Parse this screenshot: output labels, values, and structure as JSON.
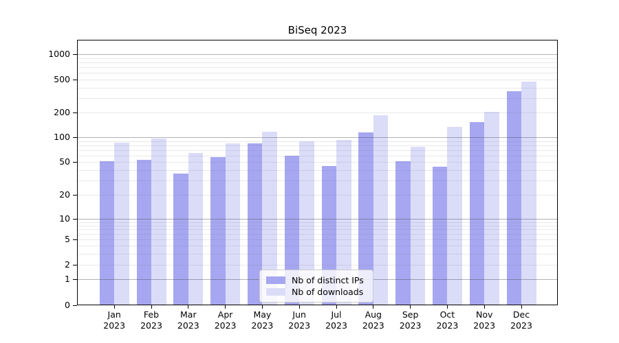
{
  "window": {
    "background": "#ffffff"
  },
  "chart_data": {
    "type": "bar",
    "title": "BiSeq 2023",
    "categories": [
      "Jan 2023",
      "Feb 2023",
      "Mar 2023",
      "Apr 2023",
      "May 2023",
      "Jun 2023",
      "Jul 2023",
      "Aug 2023",
      "Sep 2023",
      "Oct 2023",
      "Nov 2023",
      "Dec 2023"
    ],
    "series": [
      {
        "name": "Nb of distinct IPs",
        "color": "#a6a7f0",
        "values": [
          51,
          53,
          36,
          57,
          84,
          60,
          45,
          115,
          51,
          44,
          154,
          363
        ]
      },
      {
        "name": "Nb of downloads",
        "color": "#dbdcf8",
        "values": [
          85,
          97,
          64,
          84,
          116,
          90,
          92,
          184,
          76,
          133,
          205,
          470
        ]
      }
    ],
    "xlabel": "",
    "ylabel": "",
    "y_scale": "log (with 0 baseline)",
    "y_ticks": [
      0,
      1,
      2,
      5,
      10,
      20,
      50,
      100,
      200,
      500,
      1000
    ],
    "ylim": [
      0,
      1500
    ],
    "grid": "horizontal: dark lines at powers of 10, faint minor lines at 2-9 within each decade",
    "legend_position": "inside bottom-center"
  },
  "colors": {
    "bar_distinct_ips": "#a6a7f0",
    "bar_downloads": "#dbdcf8",
    "major_gridline": "#a8a8ad",
    "minor_gridline": "#e4e4e8",
    "axis_spine": "#000000",
    "legend_border": "#cccccc",
    "legend_background": "rgba(255,255,255,0.8)"
  }
}
